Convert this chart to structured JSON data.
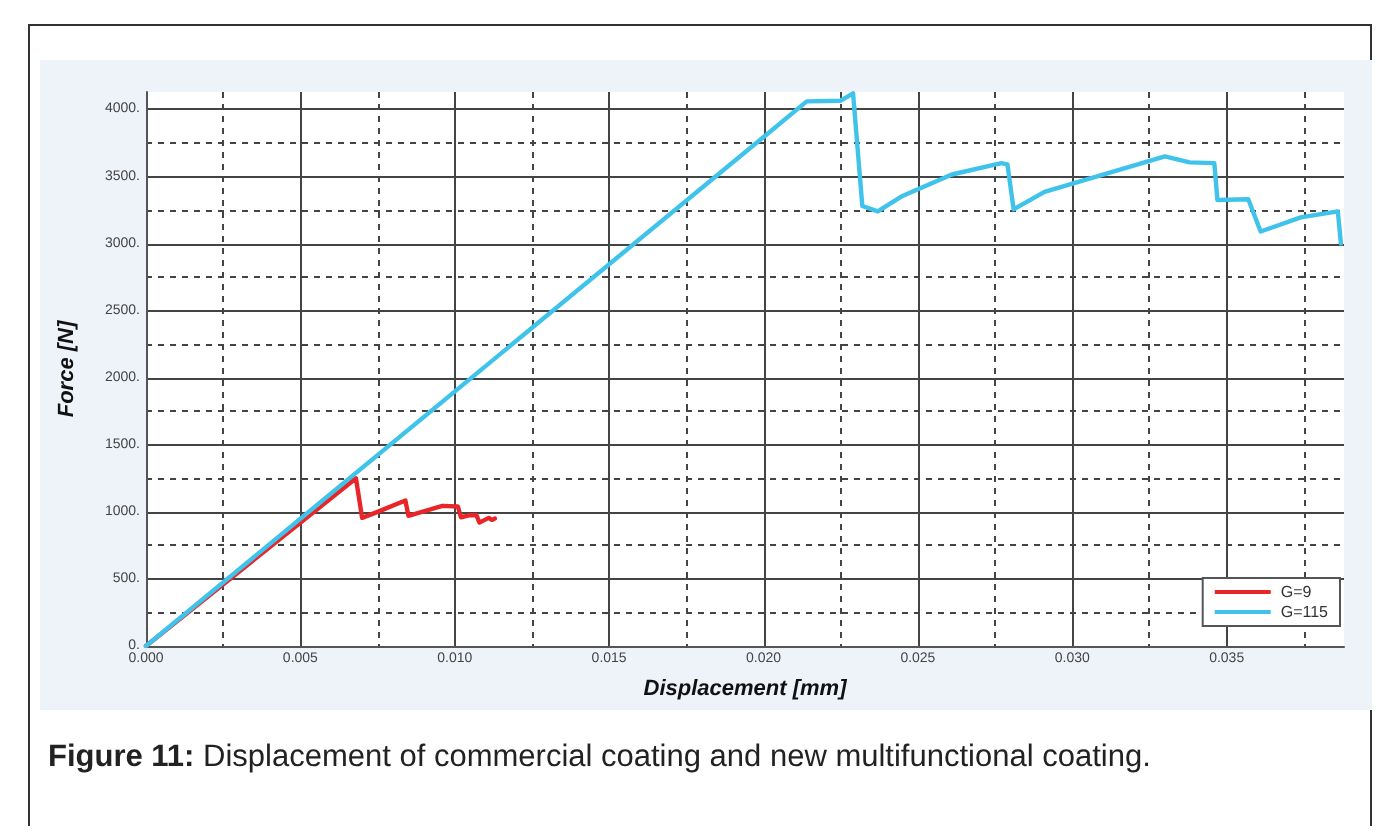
{
  "chart_data": {
    "type": "line",
    "xlabel": "Displacement [mm]",
    "ylabel": "Force [N]",
    "annotations": [
      "Figure 11: Displacement of commercial coating and new multifunctional coating."
    ],
    "xlim": [
      0,
      0.0388
    ],
    "ylim": [
      0,
      4130
    ],
    "xticks": [
      {
        "value": 0,
        "label": "0.000"
      },
      {
        "value": 0.0025,
        "label": null
      },
      {
        "value": 0.005,
        "label": "0.005"
      },
      {
        "value": 0.0075,
        "label": null
      },
      {
        "value": 0.01,
        "label": "0.010"
      },
      {
        "value": 0.0125,
        "label": null
      },
      {
        "value": 0.015,
        "label": "0.015"
      },
      {
        "value": 0.0175,
        "label": null
      },
      {
        "value": 0.02,
        "label": "0.020"
      },
      {
        "value": 0.0225,
        "label": null
      },
      {
        "value": 0.025,
        "label": "0.025"
      },
      {
        "value": 0.0275,
        "label": null
      },
      {
        "value": 0.03,
        "label": "0.030"
      },
      {
        "value": 0.0325,
        "label": null
      },
      {
        "value": 0.035,
        "label": "0.035"
      },
      {
        "value": 0.0375,
        "label": null
      }
    ],
    "yticks": [
      {
        "value": 0,
        "label": "0."
      },
      {
        "value": 250,
        "label": null
      },
      {
        "value": 500,
        "label": "500."
      },
      {
        "value": 750,
        "label": null
      },
      {
        "value": 1000,
        "label": "1000."
      },
      {
        "value": 1250,
        "label": null
      },
      {
        "value": 1500,
        "label": "1500."
      },
      {
        "value": 1750,
        "label": null
      },
      {
        "value": 2000,
        "label": "2000."
      },
      {
        "value": 2250,
        "label": null
      },
      {
        "value": 2500,
        "label": "2500."
      },
      {
        "value": 2750,
        "label": null
      },
      {
        "value": 3000,
        "label": "3000."
      },
      {
        "value": 3250,
        "label": null
      },
      {
        "value": 3500,
        "label": "3500."
      },
      {
        "value": 3750,
        "label": null
      },
      {
        "value": 4000,
        "label": "4000."
      }
    ],
    "grid": true,
    "legend": "bottom right",
    "marker": "none",
    "line_style": "solid",
    "series": [
      {
        "name": "G=9",
        "color": "#e8262a",
        "x": [
          0,
          0.0068,
          0.007,
          0.0075,
          0.0084,
          0.0085,
          0.0096,
          0.0101,
          0.0102,
          0.0105,
          0.0107,
          0.0108,
          0.0111,
          0.0112,
          0.0113
        ],
        "values": [
          0,
          1250,
          955,
          1000,
          1085,
          970,
          1045,
          1040,
          960,
          975,
          975,
          920,
          955,
          940,
          950
        ]
      },
      {
        "name": "G=115",
        "color": "#3fc3eb",
        "x": [
          0,
          0.0214,
          0.0225,
          0.0229,
          0.0232,
          0.0237,
          0.0245,
          0.0261,
          0.0277,
          0.0279,
          0.0281,
          0.0291,
          0.033,
          0.0338,
          0.0346,
          0.0347,
          0.0357,
          0.0361,
          0.0374,
          0.0386,
          0.0387
        ],
        "values": [
          0,
          4060,
          4065,
          4120,
          3280,
          3240,
          3355,
          3515,
          3600,
          3590,
          3255,
          3385,
          3650,
          3605,
          3600,
          3325,
          3330,
          3090,
          3195,
          3240,
          3000
        ]
      }
    ]
  }
}
